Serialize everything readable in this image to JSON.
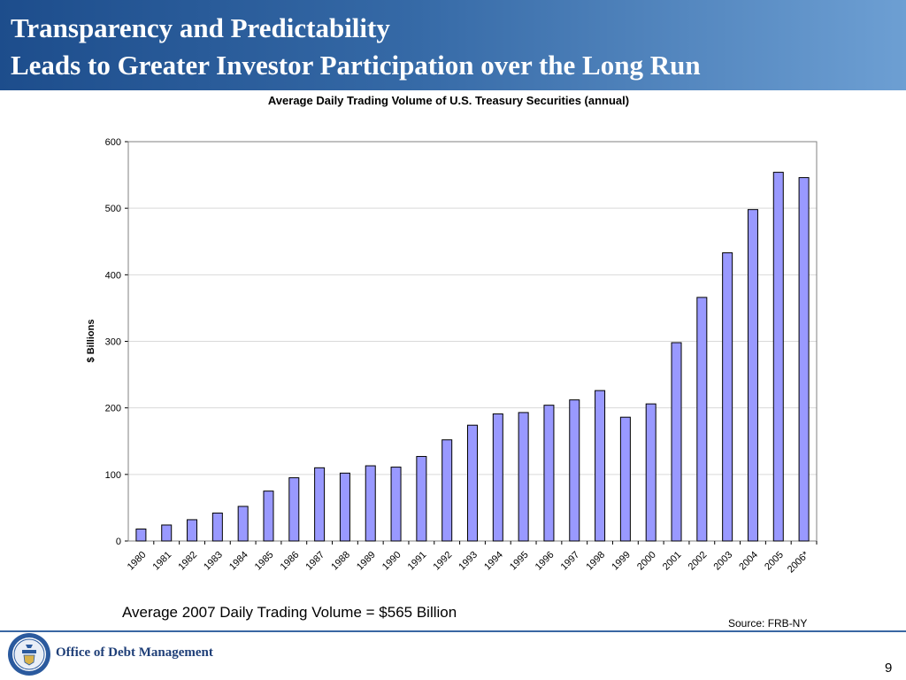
{
  "header": {
    "title_line1": "Transparency and Predictability",
    "title_line2": "Leads to Greater Investor Participation over the Long Run"
  },
  "chart_data": {
    "type": "bar",
    "title": "Average Daily Trading Volume of U.S. Treasury Securities (annual)",
    "ylabel": "$ Billions",
    "xlabel": "",
    "ylim": [
      0,
      600
    ],
    "yticks": [
      0,
      100,
      200,
      300,
      400,
      500,
      600
    ],
    "grid": true,
    "categories": [
      "1980",
      "1981",
      "1982",
      "1983",
      "1984",
      "1985",
      "1986",
      "1987",
      "1988",
      "1989",
      "1990",
      "1991",
      "1992",
      "1993",
      "1994",
      "1995",
      "1996",
      "1997",
      "1998",
      "1999",
      "2000",
      "2001",
      "2002",
      "2003",
      "2004",
      "2005",
      "2006*"
    ],
    "values": [
      18,
      24,
      32,
      42,
      52,
      75,
      95,
      110,
      102,
      113,
      111,
      127,
      152,
      174,
      191,
      193,
      204,
      212,
      226,
      186,
      206,
      298,
      366,
      433,
      498,
      554,
      546
    ],
    "bar_color": "#9999ff",
    "bar_stroke": "#000000"
  },
  "note": "Average 2007 Daily Trading Volume = $565 Billion",
  "source": "Source: FRB-NY",
  "footer": {
    "office": "Office of Debt Management",
    "page_number": "9"
  },
  "colors": {
    "header_dark": "#1d4d8c",
    "header_light": "#6d9fd3",
    "footer_line": "#3a67a3",
    "office_text": "#1f3f78"
  }
}
